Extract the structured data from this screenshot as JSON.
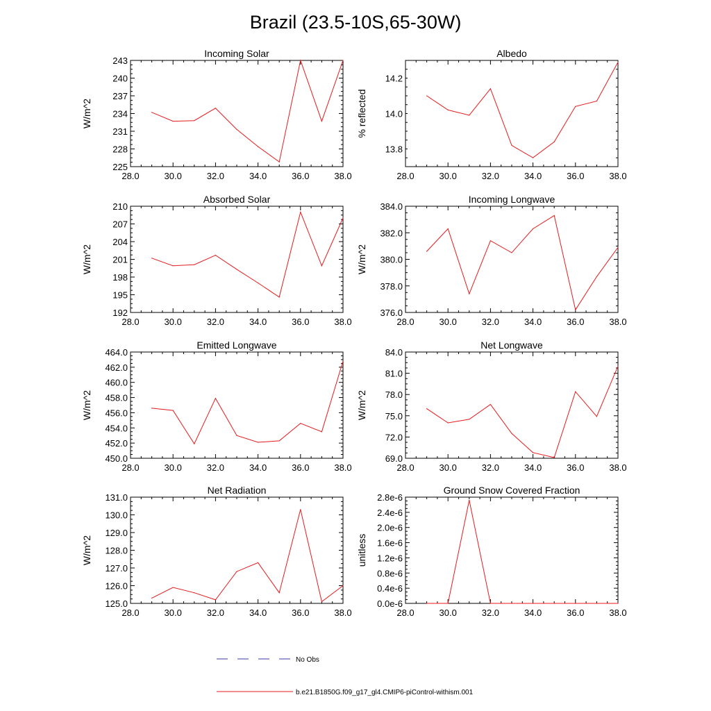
{
  "figure": {
    "title": "Brazil (23.5-10S,65-30W)",
    "legend": [
      {
        "label": "No Obs",
        "color": "#3a3aa8",
        "dash": true
      },
      {
        "label": "b.e21.B1850G.f09_g17_gl4.CMIP6-piControl-withism.001",
        "color": "#e8191b",
        "dash": false
      }
    ]
  },
  "chart_data": [
    {
      "type": "line",
      "title": "Incoming Solar",
      "ylabel": "W/m^2",
      "xlim": [
        28,
        38
      ],
      "ylim": [
        225,
        243
      ],
      "xticks": [
        28,
        30,
        32,
        34,
        36,
        38
      ],
      "xtick_labels": [
        "28.0",
        "30.0",
        "32.0",
        "34.0",
        "36.0",
        "38.0"
      ],
      "yticks": [
        225,
        228,
        231,
        234,
        237,
        240,
        243
      ],
      "ytick_labels": [
        "225",
        "228",
        "231",
        "234",
        "237",
        "240",
        "243"
      ],
      "series": [
        {
          "color": "#e8191b",
          "x": [
            29,
            30,
            31,
            32,
            33,
            34,
            35,
            36,
            37,
            38
          ],
          "y": [
            234.2,
            232.7,
            232.8,
            234.9,
            231.3,
            228.4,
            225.8,
            243.0,
            232.7,
            243.0
          ]
        }
      ]
    },
    {
      "type": "line",
      "title": "Albedo",
      "ylabel": "% reflected",
      "xlim": [
        28,
        38
      ],
      "ylim": [
        13.7,
        14.3
      ],
      "xticks": [
        28,
        30,
        32,
        34,
        36,
        38
      ],
      "xtick_labels": [
        "28.0",
        "30.0",
        "32.0",
        "34.0",
        "36.0",
        "38.0"
      ],
      "yticks": [
        13.8,
        14.0,
        14.2
      ],
      "ytick_labels": [
        "13.8",
        "14.0",
        "14.2"
      ],
      "series": [
        {
          "color": "#e8191b",
          "x": [
            29,
            30,
            31,
            32,
            33,
            34,
            35,
            36,
            37,
            38
          ],
          "y": [
            14.1,
            14.02,
            13.99,
            14.14,
            13.82,
            13.75,
            13.84,
            14.04,
            14.07,
            14.29
          ]
        }
      ]
    },
    {
      "type": "line",
      "title": "Absorbed Solar",
      "ylabel": "W/m^2",
      "xlim": [
        28,
        38
      ],
      "ylim": [
        192,
        210
      ],
      "xticks": [
        28,
        30,
        32,
        34,
        36,
        38
      ],
      "xtick_labels": [
        "28.0",
        "30.0",
        "32.0",
        "34.0",
        "36.0",
        "38.0"
      ],
      "yticks": [
        192,
        195,
        198,
        201,
        204,
        207,
        210
      ],
      "ytick_labels": [
        "192",
        "195",
        "198",
        "201",
        "204",
        "207",
        "210"
      ],
      "series": [
        {
          "color": "#e8191b",
          "x": [
            29,
            30,
            31,
            32,
            33,
            34,
            35,
            36,
            37,
            38
          ],
          "y": [
            201.2,
            199.9,
            200.1,
            201.7,
            199.3,
            197.0,
            194.6,
            209.0,
            199.9,
            208.0
          ]
        }
      ]
    },
    {
      "type": "line",
      "title": "Incoming Longwave",
      "ylabel": "W/m^2",
      "xlim": [
        28,
        38
      ],
      "ylim": [
        376,
        384
      ],
      "xticks": [
        28,
        30,
        32,
        34,
        36,
        38
      ],
      "xtick_labels": [
        "28.0",
        "30.0",
        "32.0",
        "34.0",
        "36.0",
        "38.0"
      ],
      "yticks": [
        376,
        378,
        380,
        382,
        384
      ],
      "ytick_labels": [
        "376.0",
        "378.0",
        "380.0",
        "382.0",
        "384.0"
      ],
      "series": [
        {
          "color": "#e8191b",
          "x": [
            29,
            30,
            31,
            32,
            33,
            34,
            35,
            36,
            37,
            38
          ],
          "y": [
            380.6,
            382.3,
            377.4,
            381.4,
            380.5,
            382.3,
            383.3,
            376.2,
            378.7,
            380.9
          ]
        }
      ]
    },
    {
      "type": "line",
      "title": "Emitted Longwave",
      "ylabel": "W/m^2",
      "xlim": [
        28,
        38
      ],
      "ylim": [
        450,
        464
      ],
      "xticks": [
        28,
        30,
        32,
        34,
        36,
        38
      ],
      "xtick_labels": [
        "28.0",
        "30.0",
        "32.0",
        "34.0",
        "36.0",
        "38.0"
      ],
      "yticks": [
        450,
        452,
        454,
        456,
        458,
        460,
        462,
        464
      ],
      "ytick_labels": [
        "450.0",
        "452.0",
        "454.0",
        "456.0",
        "458.0",
        "460.0",
        "462.0",
        "464.0"
      ],
      "series": [
        {
          "color": "#e8191b",
          "x": [
            29,
            30,
            31,
            32,
            33,
            34,
            35,
            36,
            37,
            38
          ],
          "y": [
            456.6,
            456.3,
            451.9,
            457.9,
            453.0,
            452.1,
            452.3,
            454.6,
            453.5,
            462.8
          ]
        }
      ]
    },
    {
      "type": "line",
      "title": "Net Longwave",
      "ylabel": "W/m^2",
      "xlim": [
        28,
        38
      ],
      "ylim": [
        69,
        84
      ],
      "xticks": [
        28,
        30,
        32,
        34,
        36,
        38
      ],
      "xtick_labels": [
        "28.0",
        "30.0",
        "32.0",
        "34.0",
        "36.0",
        "38.0"
      ],
      "yticks": [
        69,
        72,
        75,
        78,
        81,
        84
      ],
      "ytick_labels": [
        "69.0",
        "72.0",
        "75.0",
        "78.0",
        "81.0",
        "84.0"
      ],
      "series": [
        {
          "color": "#e8191b",
          "x": [
            29,
            30,
            31,
            32,
            33,
            34,
            35,
            36,
            37,
            38
          ],
          "y": [
            76.0,
            74.0,
            74.5,
            76.6,
            72.5,
            69.8,
            69.1,
            78.4,
            74.9,
            82.0
          ]
        }
      ]
    },
    {
      "type": "line",
      "title": "Net Radiation",
      "ylabel": "W/m^2",
      "xlim": [
        28,
        38
      ],
      "ylim": [
        125,
        131
      ],
      "xticks": [
        28,
        30,
        32,
        34,
        36,
        38
      ],
      "xtick_labels": [
        "28.0",
        "30.0",
        "32.0",
        "34.0",
        "36.0",
        "38.0"
      ],
      "yticks": [
        125,
        126,
        127,
        128,
        129,
        130,
        131
      ],
      "ytick_labels": [
        "125.0",
        "126.0",
        "127.0",
        "128.0",
        "129.0",
        "130.0",
        "131.0"
      ],
      "series": [
        {
          "color": "#e8191b",
          "x": [
            29,
            30,
            31,
            32,
            33,
            34,
            35,
            36,
            37,
            38
          ],
          "y": [
            125.3,
            125.9,
            125.6,
            125.2,
            126.8,
            127.3,
            125.6,
            130.3,
            125.1,
            126.0
          ]
        }
      ]
    },
    {
      "type": "line",
      "title": "Ground Snow Covered Fraction",
      "ylabel": "unitless",
      "xlim": [
        28,
        38
      ],
      "ylim": [
        0,
        2.8e-06
      ],
      "xticks": [
        28,
        30,
        32,
        34,
        36,
        38
      ],
      "xtick_labels": [
        "28.0",
        "30.0",
        "32.0",
        "34.0",
        "36.0",
        "38.0"
      ],
      "yticks": [
        0,
        4e-07,
        8e-07,
        1.2e-06,
        1.6e-06,
        2e-06,
        2.4e-06,
        2.8e-06
      ],
      "ytick_labels": [
        "0.0e-6",
        "0.4e-6",
        "0.8e-6",
        "1.2e-6",
        "1.6e-6",
        "2.0e-6",
        "2.4e-6",
        "2.8e-6"
      ],
      "series": [
        {
          "color": "#e8191b",
          "x": [
            29,
            30,
            31,
            32,
            33,
            34,
            35,
            36,
            37,
            38
          ],
          "y": [
            0,
            0,
            2.72e-06,
            0,
            0,
            0,
            0,
            0,
            0,
            0
          ]
        }
      ]
    }
  ]
}
